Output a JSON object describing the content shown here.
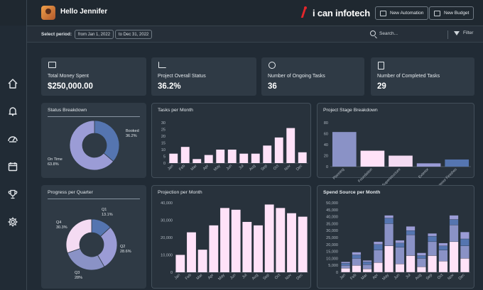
{
  "header": {
    "greeting": "Hello Jennifer",
    "logo_text": "i can infotech",
    "new_automation_label": "New Automation",
    "new_budget_label": "New Budget"
  },
  "filters": {
    "period_label": "Select period:",
    "from_date": "from Jan 1, 2022",
    "to_date": "to Dec 31, 2022",
    "search_placeholder": "Search...",
    "filter_label": "Filter"
  },
  "sidebar": {
    "items": [
      "home-icon",
      "bell-icon",
      "gauge-icon",
      "calendar-icon",
      "trophy-icon",
      "gear-icon"
    ]
  },
  "kpis": [
    {
      "label": "Total Money Spent",
      "value": "$250,000.00",
      "icon": "money-icon"
    },
    {
      "label": "Project Overall Status",
      "value": "36.2%",
      "icon": "chart-icon"
    },
    {
      "label": "Number of Ongoing Tasks",
      "value": "36",
      "icon": "user-circle-icon"
    },
    {
      "label": "Number of Completed Tasks",
      "value": "29",
      "icon": "clipboard-icon"
    }
  ],
  "colors": {
    "accent": "#ffe2f8",
    "blue": "#5575b0",
    "lavender": "#9b9cd6",
    "pink": "#f4dbf2",
    "mid": "#8a92c6"
  },
  "chart_data": [
    {
      "type": "pie",
      "title": "Status Breakdown",
      "slices": [
        {
          "name": "Booked",
          "value": 36.2,
          "label": "36.2%"
        },
        {
          "name": "On Time",
          "value": 63.8,
          "label": "63.8%"
        }
      ]
    },
    {
      "type": "bar",
      "title": "Tasks per Month",
      "categories": [
        "Jan",
        "Feb",
        "Mar",
        "Apr",
        "May",
        "Jun",
        "Jul",
        "Aug",
        "Sep",
        "Oct",
        "Nov",
        "Dec"
      ],
      "values": [
        7,
        12,
        3,
        6,
        10,
        10,
        7,
        7,
        13,
        19,
        26,
        8
      ],
      "ylim": [
        0,
        30
      ],
      "yticks": [
        "0",
        "5",
        "10",
        "15",
        "20",
        "25",
        "30"
      ]
    },
    {
      "type": "bar",
      "title": "Project Stage  Breakdown",
      "categories": [
        "Planning",
        "Foundation",
        "Superstructure",
        "Exterior",
        "Interior Finishes"
      ],
      "values": [
        63,
        29,
        20,
        6,
        13
      ],
      "ylim": [
        0,
        80
      ],
      "yticks": [
        "0",
        "20",
        "40",
        "60",
        "80"
      ]
    },
    {
      "type": "pie",
      "title": "Progress per Quarter",
      "slices": [
        {
          "name": "Q1",
          "value": 13.1,
          "label": "13.1%"
        },
        {
          "name": "Q2",
          "value": 28.6,
          "label": "28.6%"
        },
        {
          "name": "Q3",
          "value": 28,
          "label": "28%"
        },
        {
          "name": "Q4",
          "value": 30.3,
          "label": "30.3%"
        }
      ]
    },
    {
      "type": "bar",
      "title": "Projection per Month",
      "categories": [
        "Jan",
        "Feb",
        "Mar",
        "Apr",
        "May",
        "Jun",
        "Jul",
        "Aug",
        "Sep",
        "Oct",
        "Nov",
        "Dec"
      ],
      "values": [
        10000,
        23000,
        13000,
        27000,
        37000,
        36000,
        29000,
        27000,
        39000,
        37000,
        34000,
        32000
      ],
      "ylim": [
        0,
        40000
      ],
      "yticks": [
        "0",
        "10,000",
        "20,000",
        "30,000",
        "40,000"
      ]
    },
    {
      "type": "bar",
      "title": "Spend Source per Month",
      "categories": [
        "Jan",
        "Feb",
        "Mar",
        "Apr",
        "May",
        "Jun",
        "Jul",
        "Aug",
        "Sep",
        "Oct",
        "Nov",
        "Dec"
      ],
      "ylim": [
        0,
        50000
      ],
      "yticks": [
        "0",
        "5,000",
        "10,000",
        "15,000",
        "20,000",
        "25,000",
        "30,000",
        "35,000",
        "40,000",
        "45,000",
        "50,000"
      ],
      "series": [
        {
          "values": [
            3000,
            5000,
            2500,
            7000,
            19000,
            6000,
            12000,
            4000,
            12000,
            8000,
            22000,
            10000
          ]
        },
        {
          "values": [
            2000,
            5000,
            3000,
            9000,
            16000,
            12000,
            15000,
            6000,
            10000,
            8000,
            12000,
            9000
          ]
        },
        {
          "values": [
            1500,
            2500,
            2000,
            4000,
            4000,
            3000,
            3000,
            2000,
            4000,
            3000,
            4000,
            5000
          ]
        },
        {
          "values": [
            1000,
            2000,
            1000,
            2000,
            2000,
            2000,
            3000,
            2000,
            2000,
            2000,
            3000,
            5000
          ]
        }
      ]
    }
  ]
}
